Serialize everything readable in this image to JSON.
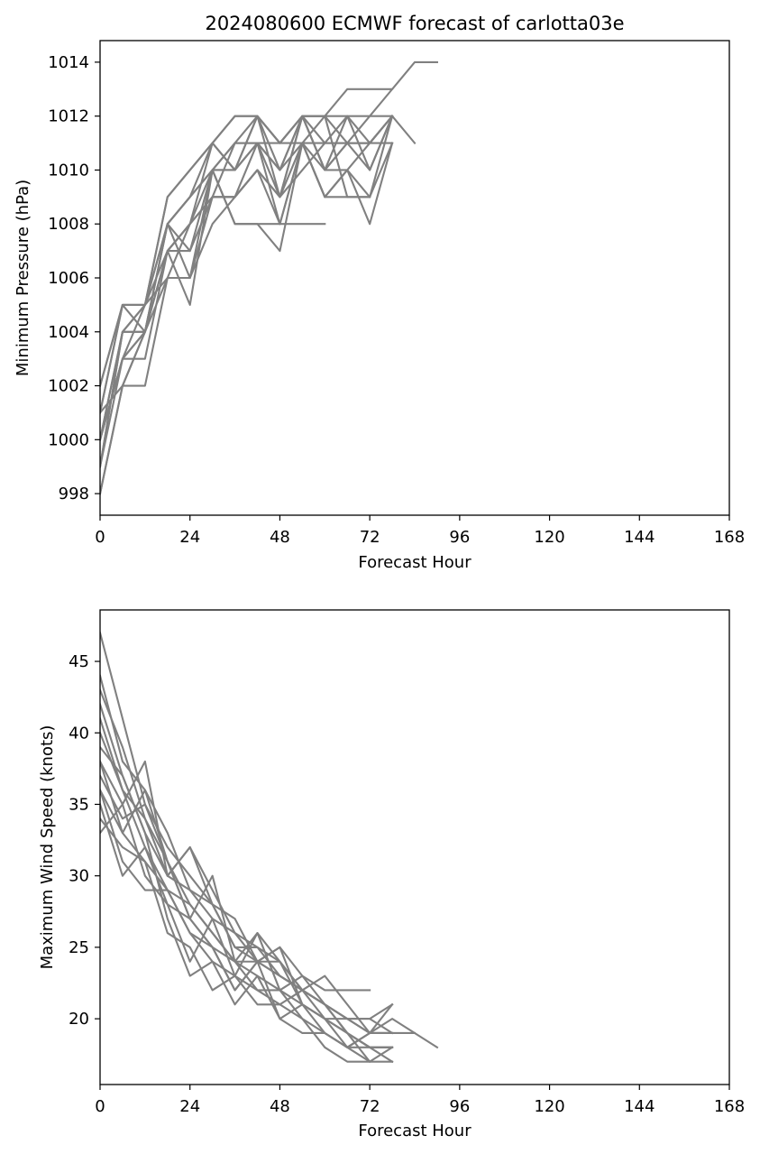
{
  "chart_data": [
    {
      "type": "line",
      "title": "2024080600 ECMWF forecast of carlotta03e",
      "xlabel": "Forecast Hour",
      "ylabel": "Minimum Pressure (hPa)",
      "xlim": [
        0,
        168
      ],
      "ylim": [
        997.2,
        1014.8
      ],
      "xticks": [
        "0",
        "24",
        "48",
        "72",
        "96",
        "120",
        "144",
        "168"
      ],
      "yticks": [
        "998",
        "1000",
        "1002",
        "1004",
        "1006",
        "1008",
        "1010",
        "1012",
        "1014"
      ],
      "grid": false,
      "line_color": "#808080",
      "x": [
        0,
        6,
        12,
        18,
        24,
        30,
        36,
        42,
        48,
        54,
        60,
        66,
        72,
        78,
        84,
        90
      ],
      "series": [
        {
          "values": [
            998,
            1002,
            1004,
            1008,
            1009,
            1010,
            1010,
            1012,
            1011,
            1012,
            1012,
            1013,
            1013,
            1013,
            1014,
            1014
          ]
        },
        {
          "values": [
            999,
            1003,
            1004,
            1007,
            1008,
            1010,
            1011,
            1011,
            1010,
            1011,
            1011,
            1011,
            1012,
            1012,
            1011,
            null
          ]
        },
        {
          "values": [
            1000,
            1004,
            1005,
            1008,
            1009,
            1011,
            1012,
            1012,
            1011,
            1012,
            1012,
            1011,
            1011,
            1012,
            null,
            null
          ]
        },
        {
          "values": [
            1001,
            1005,
            1005,
            1009,
            1010,
            1011,
            1010,
            1011,
            1009,
            1012,
            1010,
            1012,
            1010,
            1012,
            null,
            null
          ]
        },
        {
          "values": [
            1002,
            1005,
            1005,
            1007,
            1007,
            1009,
            1009,
            1010,
            1008,
            1011,
            1009,
            1009,
            1009,
            1011,
            null,
            null
          ]
        },
        {
          "values": [
            999,
            1004,
            1004,
            1006,
            1006,
            1008,
            1009,
            1010,
            1009,
            1010,
            1011,
            1012,
            1011,
            1012,
            null,
            null
          ]
        },
        {
          "values": [
            1000,
            1003,
            1003,
            1007,
            1005,
            1010,
            1008,
            1008,
            1007,
            1011,
            1009,
            1010,
            1008,
            1011,
            null,
            null
          ]
        },
        {
          "values": [
            1001,
            1002,
            1002,
            1006,
            1008,
            1009,
            1011,
            1012,
            1010,
            1012,
            1010,
            1011,
            1010,
            1012,
            null,
            null
          ]
        },
        {
          "values": [
            1000,
            1003,
            1004,
            1008,
            1007,
            1010,
            1010,
            1011,
            1011,
            1011,
            1012,
            1009,
            1009,
            1012,
            null,
            null
          ]
        },
        {
          "values": [
            999,
            1004,
            1005,
            1006,
            1006,
            1009,
            1009,
            1011,
            1008,
            1011,
            1009,
            1010,
            1009,
            null,
            null,
            null
          ]
        },
        {
          "values": [
            1001,
            1005,
            1004,
            1007,
            1008,
            1011,
            1010,
            1012,
            1009,
            1012,
            1010,
            1011,
            1011,
            1012,
            null,
            null
          ]
        },
        {
          "values": [
            1000,
            1003,
            1005,
            1008,
            1009,
            1010,
            1011,
            1011,
            1010,
            1012,
            1011,
            1011,
            1011,
            1011,
            null,
            null
          ]
        },
        {
          "values": [
            998,
            1002,
            1004,
            1007,
            1008,
            1009,
            1009,
            1010,
            1009,
            1011,
            1010,
            1010,
            1011,
            1012,
            null,
            null
          ]
        },
        {
          "values": [
            1002,
            1005,
            1005,
            1009,
            1010,
            1011,
            1012,
            1012,
            1011,
            1012,
            1012,
            1012,
            1012,
            1013,
            null,
            null
          ]
        },
        {
          "values": [
            1000,
            1004,
            1004,
            1008,
            1006,
            1010,
            1008,
            1008,
            1008,
            1008,
            1008,
            null,
            null,
            null,
            null,
            null
          ]
        }
      ]
    },
    {
      "type": "line",
      "title": "",
      "xlabel": "Forecast Hour",
      "ylabel": "Maximum Wind Speed (knots)",
      "xlim": [
        0,
        168
      ],
      "ylim": [
        15.4,
        48.6
      ],
      "xticks": [
        "0",
        "24",
        "48",
        "72",
        "96",
        "120",
        "144",
        "168"
      ],
      "yticks": [
        "20",
        "25",
        "30",
        "35",
        "40",
        "45"
      ],
      "grid": false,
      "line_color": "#808080",
      "x": [
        0,
        6,
        12,
        18,
        24,
        30,
        36,
        42,
        48,
        54,
        60,
        66,
        72,
        78,
        84,
        90
      ],
      "series": [
        {
          "values": [
            47,
            41,
            35,
            31,
            28,
            26,
            24,
            23,
            22,
            21,
            20,
            20,
            19,
            20,
            19,
            18
          ]
        },
        {
          "values": [
            44,
            38,
            36,
            33,
            29,
            28,
            25,
            24,
            23,
            22,
            21,
            20,
            19,
            19,
            19,
            null
          ]
        },
        {
          "values": [
            42,
            37,
            33,
            30,
            32,
            29,
            26,
            25,
            24,
            22,
            21,
            20,
            20,
            21,
            null,
            null
          ]
        },
        {
          "values": [
            40,
            36,
            34,
            31,
            27,
            30,
            24,
            26,
            24,
            22,
            23,
            21,
            19,
            21,
            null,
            null
          ]
        },
        {
          "values": [
            38,
            35,
            38,
            30,
            32,
            28,
            27,
            24,
            25,
            21,
            20,
            19,
            18,
            18,
            null,
            null
          ]
        },
        {
          "values": [
            36,
            33,
            31,
            29,
            26,
            25,
            24,
            22,
            22,
            20,
            19,
            18,
            17,
            18,
            null,
            null
          ]
        },
        {
          "values": [
            35,
            30,
            32,
            28,
            24,
            27,
            23,
            26,
            22,
            23,
            21,
            20,
            20,
            19,
            null,
            null
          ]
        },
        {
          "values": [
            37,
            34,
            35,
            32,
            30,
            28,
            25,
            25,
            23,
            22,
            21,
            19,
            18,
            17,
            null,
            null
          ]
        },
        {
          "values": [
            39,
            37,
            33,
            27,
            23,
            24,
            23,
            21,
            21,
            20,
            18,
            17,
            17,
            17,
            null,
            null
          ]
        },
        {
          "values": [
            33,
            35,
            30,
            28,
            27,
            25,
            22,
            24,
            24,
            21,
            20,
            18,
            19,
            19,
            null,
            null
          ]
        },
        {
          "values": [
            41,
            36,
            32,
            29,
            26,
            24,
            21,
            23,
            20,
            19,
            19,
            18,
            19,
            19,
            null,
            null
          ]
        },
        {
          "values": [
            34,
            32,
            31,
            26,
            25,
            22,
            23,
            22,
            21,
            22,
            20,
            19,
            17,
            null,
            null,
            null
          ]
        },
        {
          "values": [
            43,
            39,
            34,
            30,
            29,
            27,
            26,
            24,
            25,
            23,
            22,
            22,
            22,
            null,
            null,
            null
          ]
        },
        {
          "values": [
            36,
            31,
            29,
            29,
            28,
            26,
            24,
            24,
            23,
            22,
            21,
            19,
            18,
            18,
            null,
            null
          ]
        },
        {
          "values": [
            38,
            33,
            36,
            31,
            27,
            25,
            22,
            24,
            20,
            21,
            19,
            18,
            18,
            18,
            null,
            null
          ]
        }
      ]
    }
  ]
}
